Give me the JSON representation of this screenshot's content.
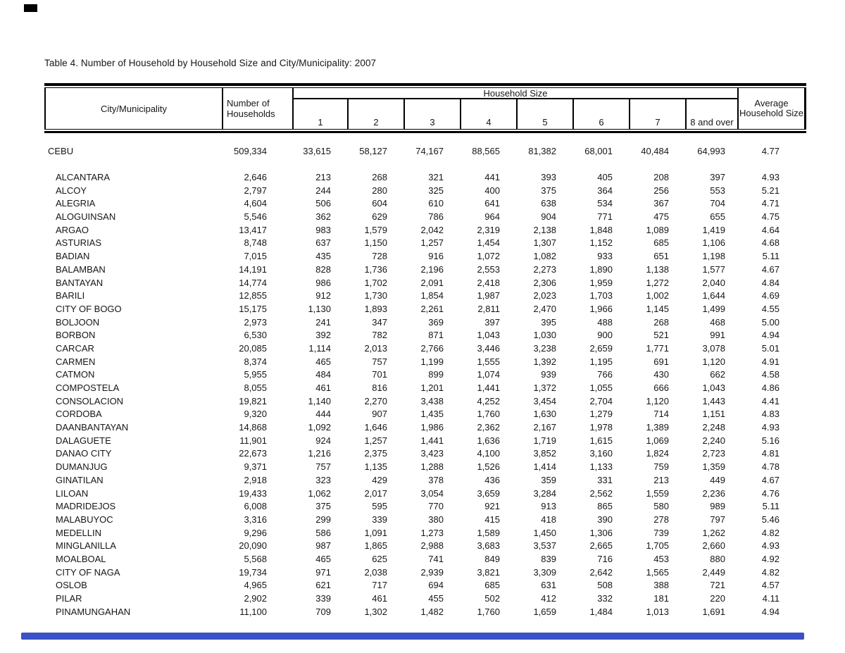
{
  "page": {
    "title": "Table 4. Number of Household by Household Size and City/Municipality: 2007"
  },
  "table": {
    "header": {
      "city_col": "City/Municipality",
      "households_col": "Number of Households",
      "size_group": "Household Size",
      "size_cols": [
        "1",
        "2",
        "3",
        "4",
        "5",
        "6",
        "7",
        "8 and over"
      ],
      "avg_col": "Average Household Size"
    },
    "rows": [
      {
        "name": "CEBU",
        "total": true,
        "values": [
          "509,334",
          "33,615",
          "58,127",
          "74,167",
          "88,565",
          "81,382",
          "68,001",
          "40,484",
          "64,993",
          "4.77"
        ]
      },
      {
        "name": "ALCANTARA",
        "values": [
          "2,646",
          "213",
          "268",
          "321",
          "441",
          "393",
          "405",
          "208",
          "397",
          "4.93"
        ]
      },
      {
        "name": "ALCOY",
        "values": [
          "2,797",
          "244",
          "280",
          "325",
          "400",
          "375",
          "364",
          "256",
          "553",
          "5.21"
        ]
      },
      {
        "name": "ALEGRIA",
        "values": [
          "4,604",
          "506",
          "604",
          "610",
          "641",
          "638",
          "534",
          "367",
          "704",
          "4.71"
        ]
      },
      {
        "name": "ALOGUINSAN",
        "values": [
          "5,546",
          "362",
          "629",
          "786",
          "964",
          "904",
          "771",
          "475",
          "655",
          "4.75"
        ]
      },
      {
        "name": "ARGAO",
        "values": [
          "13,417",
          "983",
          "1,579",
          "2,042",
          "2,319",
          "2,138",
          "1,848",
          "1,089",
          "1,419",
          "4.64"
        ]
      },
      {
        "name": "ASTURIAS",
        "values": [
          "8,748",
          "637",
          "1,150",
          "1,257",
          "1,454",
          "1,307",
          "1,152",
          "685",
          "1,106",
          "4.68"
        ]
      },
      {
        "name": "BADIAN",
        "values": [
          "7,015",
          "435",
          "728",
          "916",
          "1,072",
          "1,082",
          "933",
          "651",
          "1,198",
          "5.11"
        ]
      },
      {
        "name": "BALAMBAN",
        "values": [
          "14,191",
          "828",
          "1,736",
          "2,196",
          "2,553",
          "2,273",
          "1,890",
          "1,138",
          "1,577",
          "4.67"
        ]
      },
      {
        "name": "BANTAYAN",
        "values": [
          "14,774",
          "986",
          "1,702",
          "2,091",
          "2,418",
          "2,306",
          "1,959",
          "1,272",
          "2,040",
          "4.84"
        ]
      },
      {
        "name": "BARILI",
        "values": [
          "12,855",
          "912",
          "1,730",
          "1,854",
          "1,987",
          "2,023",
          "1,703",
          "1,002",
          "1,644",
          "4.69"
        ]
      },
      {
        "name": "CITY OF BOGO",
        "values": [
          "15,175",
          "1,130",
          "1,893",
          "2,261",
          "2,811",
          "2,470",
          "1,966",
          "1,145",
          "1,499",
          "4.55"
        ]
      },
      {
        "name": "BOLJOON",
        "values": [
          "2,973",
          "241",
          "347",
          "369",
          "397",
          "395",
          "488",
          "268",
          "468",
          "5.00"
        ]
      },
      {
        "name": "BORBON",
        "values": [
          "6,530",
          "392",
          "782",
          "871",
          "1,043",
          "1,030",
          "900",
          "521",
          "991",
          "4.94"
        ]
      },
      {
        "name": "CARCAR",
        "values": [
          "20,085",
          "1,114",
          "2,013",
          "2,766",
          "3,446",
          "3,238",
          "2,659",
          "1,771",
          "3,078",
          "5.01"
        ]
      },
      {
        "name": "CARMEN",
        "values": [
          "8,374",
          "465",
          "757",
          "1,199",
          "1,555",
          "1,392",
          "1,195",
          "691",
          "1,120",
          "4.91"
        ]
      },
      {
        "name": "CATMON",
        "values": [
          "5,955",
          "484",
          "701",
          "899",
          "1,074",
          "939",
          "766",
          "430",
          "662",
          "4.58"
        ]
      },
      {
        "name": "COMPOSTELA",
        "values": [
          "8,055",
          "461",
          "816",
          "1,201",
          "1,441",
          "1,372",
          "1,055",
          "666",
          "1,043",
          "4.86"
        ]
      },
      {
        "name": "CONSOLACION",
        "values": [
          "19,821",
          "1,140",
          "2,270",
          "3,438",
          "4,252",
          "3,454",
          "2,704",
          "1,120",
          "1,443",
          "4.41"
        ]
      },
      {
        "name": "CORDOBA",
        "values": [
          "9,320",
          "444",
          "907",
          "1,435",
          "1,760",
          "1,630",
          "1,279",
          "714",
          "1,151",
          "4.83"
        ]
      },
      {
        "name": "DAANBANTAYAN",
        "values": [
          "14,868",
          "1,092",
          "1,646",
          "1,986",
          "2,362",
          "2,167",
          "1,978",
          "1,389",
          "2,248",
          "4.93"
        ]
      },
      {
        "name": "DALAGUETE",
        "values": [
          "11,901",
          "924",
          "1,257",
          "1,441",
          "1,636",
          "1,719",
          "1,615",
          "1,069",
          "2,240",
          "5.16"
        ]
      },
      {
        "name": "DANAO CITY",
        "values": [
          "22,673",
          "1,216",
          "2,375",
          "3,423",
          "4,100",
          "3,852",
          "3,160",
          "1,824",
          "2,723",
          "4.81"
        ]
      },
      {
        "name": "DUMANJUG",
        "values": [
          "9,371",
          "757",
          "1,135",
          "1,288",
          "1,526",
          "1,414",
          "1,133",
          "759",
          "1,359",
          "4.78"
        ]
      },
      {
        "name": "GINATILAN",
        "values": [
          "2,918",
          "323",
          "429",
          "378",
          "436",
          "359",
          "331",
          "213",
          "449",
          "4.67"
        ]
      },
      {
        "name": "LILOAN",
        "values": [
          "19,433",
          "1,062",
          "2,017",
          "3,054",
          "3,659",
          "3,284",
          "2,562",
          "1,559",
          "2,236",
          "4.76"
        ]
      },
      {
        "name": "MADRIDEJOS",
        "values": [
          "6,008",
          "375",
          "595",
          "770",
          "921",
          "913",
          "865",
          "580",
          "989",
          "5.11"
        ]
      },
      {
        "name": "MALABUYOC",
        "values": [
          "3,316",
          "299",
          "339",
          "380",
          "415",
          "418",
          "390",
          "278",
          "797",
          "5.46"
        ]
      },
      {
        "name": "MEDELLIN",
        "values": [
          "9,296",
          "586",
          "1,091",
          "1,273",
          "1,589",
          "1,450",
          "1,306",
          "739",
          "1,262",
          "4.82"
        ]
      },
      {
        "name": "MINGLANILLA",
        "values": [
          "20,090",
          "987",
          "1,865",
          "2,988",
          "3,683",
          "3,537",
          "2,665",
          "1,705",
          "2,660",
          "4.93"
        ]
      },
      {
        "name": "MOALBOAL",
        "values": [
          "5,568",
          "465",
          "625",
          "741",
          "849",
          "839",
          "716",
          "453",
          "880",
          "4.92"
        ]
      },
      {
        "name": "CITY OF NAGA",
        "values": [
          "19,734",
          "971",
          "2,038",
          "2,939",
          "3,821",
          "3,309",
          "2,642",
          "1,565",
          "2,449",
          "4.82"
        ]
      },
      {
        "name": "OSLOB",
        "values": [
          "4,965",
          "621",
          "717",
          "694",
          "685",
          "631",
          "508",
          "388",
          "721",
          "4.57"
        ]
      },
      {
        "name": "PILAR",
        "values": [
          "2,902",
          "339",
          "461",
          "455",
          "502",
          "412",
          "332",
          "181",
          "220",
          "4.11"
        ]
      },
      {
        "name": "PINAMUNGAHAN",
        "values": [
          "11,100",
          "709",
          "1,302",
          "1,482",
          "1,760",
          "1,659",
          "1,484",
          "1,013",
          "1,691",
          "4.94"
        ]
      }
    ]
  },
  "artifacts": {
    "corner_mark_color": "#000000",
    "footer_bar_color": "#3c50c8"
  }
}
